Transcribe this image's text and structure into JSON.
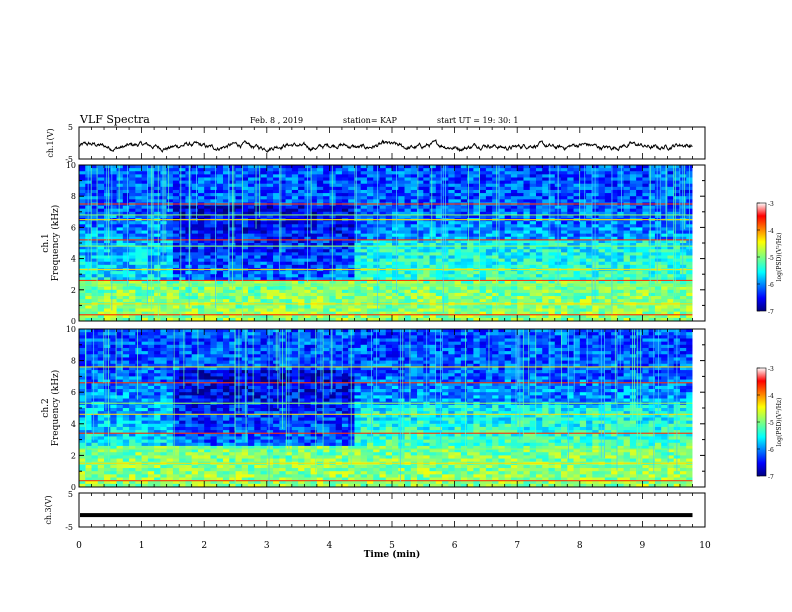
{
  "header": {
    "title": "VLF Spectra",
    "date": "Feb. 8 , 2019",
    "station": "station= KAP",
    "start": "start UT = 19: 30: 1"
  },
  "chart_data": [
    {
      "type": "line",
      "name": "ch1-waveform",
      "ylabel": "ch.1(V)",
      "ylim": [
        -5,
        5
      ],
      "yticks": [
        "5",
        "-5"
      ],
      "xlim": [
        0,
        10
      ],
      "note_shape": "noisy waveform around -1 V with amplitude ~1.5 V"
    },
    {
      "type": "heatmap",
      "name": "ch1-spectrogram",
      "ylabel_top": "ch.1",
      "ylabel": "Frequency (kHz)",
      "ylim": [
        0,
        10
      ],
      "yticks": [
        "0",
        "2",
        "4",
        "6",
        "8",
        "10"
      ],
      "xlim": [
        0,
        9.8
      ],
      "colorbar": {
        "label": "log(PSD)(V²/Hz)",
        "range": [
          -7,
          -3
        ],
        "ticks": [
          "-3",
          "-4",
          "-5",
          "-6",
          "-7"
        ]
      },
      "regime_change_min": 4.4,
      "strong_lines_khz": [
        0.4,
        1.1,
        2.3,
        2.6,
        3.3,
        4.8,
        5.2,
        6.5,
        6.8,
        7.5
      ]
    },
    {
      "type": "heatmap",
      "name": "ch2-spectrogram",
      "ylabel_top": "ch.2",
      "ylabel": "Frequency (kHz)",
      "ylim": [
        0,
        10
      ],
      "yticks": [
        "0",
        "2",
        "4",
        "6",
        "8",
        "10"
      ],
      "xlim": [
        0,
        9.8
      ],
      "colorbar": {
        "label": "log(PSD)(V²/Hz)",
        "range": [
          -7,
          -3
        ],
        "ticks": [
          "-3",
          "-4",
          "-5",
          "-6",
          "-7"
        ]
      },
      "regime_change_min": 4.4,
      "strong_lines_khz": [
        0.4,
        1.5,
        2.4,
        3.4,
        4.6,
        5.3,
        6.6,
        7.6
      ]
    },
    {
      "type": "line",
      "name": "ch3-waveform",
      "ylabel": "ch.3(V)",
      "ylim": [
        -5,
        5
      ],
      "yticks": [
        "5",
        "-5"
      ],
      "values_constant": -1.5,
      "xlabel": "Time (min)",
      "xlim": [
        0,
        10
      ],
      "xticks": [
        "0",
        "1",
        "2",
        "3",
        "4",
        "5",
        "6",
        "7",
        "8",
        "9",
        "10"
      ]
    }
  ],
  "colors": {
    "axis": "#000000",
    "background": "#ffffff"
  }
}
